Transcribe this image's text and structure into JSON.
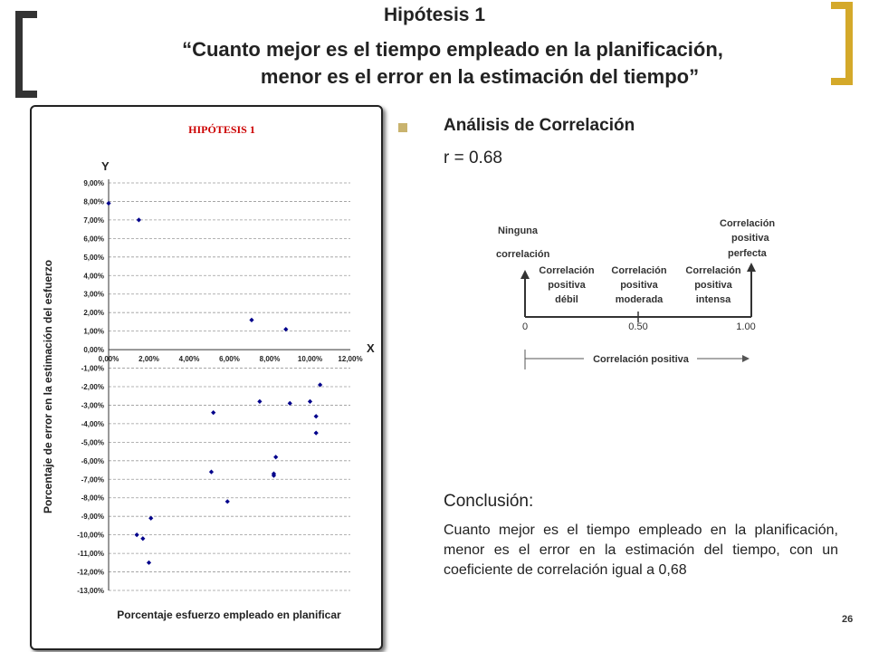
{
  "slide": {
    "title": "Hipótesis 1",
    "subtitle_line1": "“Cuanto mejor es el tiempo empleado en la planificación,",
    "subtitle_line2": "menor es el error en la estimación del tiempo”",
    "page_number": "26",
    "bracket_colors": {
      "left": "#333333",
      "right": "#d4a92a"
    }
  },
  "analysis": {
    "heading": "Análisis de Correlación",
    "r_value": "r = 0.68"
  },
  "correlation_scale": {
    "top_left": [
      "Ninguna",
      "correlación"
    ],
    "top_right": [
      "Correlación",
      "positiva",
      "perfecta"
    ],
    "label_weak": [
      "Correlación",
      "positiva",
      "débil"
    ],
    "label_moderate": [
      "Correlación",
      "positiva",
      "moderada"
    ],
    "label_strong": [
      "Correlación",
      "positiva",
      "intensa"
    ],
    "tick_0": "0",
    "tick_050": "0.50",
    "tick_100": "1.00",
    "bottom_label": "Correlación positiva"
  },
  "conclusion": {
    "label": "Conclusión:",
    "text": "Cuanto mejor es el tiempo empleado en la planificación, menor es el error en la estimación del tiempo, con un coeficiente de correlación igual a 0,68"
  },
  "chart_data": {
    "type": "scatter",
    "title": "HIPÓTESIS 1",
    "title_color": "#cc0000",
    "xlabel": "Porcentaje esfuerzo empleado en planificar",
    "ylabel": "Porcentaje de error en la estimación del esfuerzo",
    "x_axis_name": "X",
    "y_axis_name": "Y",
    "xlim": [
      0,
      12
    ],
    "ylim": [
      -13,
      9
    ],
    "x_ticks": [
      "0,00%",
      "2,00%",
      "4,00%",
      "6,00%",
      "8,00%",
      "10,00%",
      "12,00%"
    ],
    "y_ticks": [
      "9,00%",
      "8,00%",
      "7,00%",
      "6,00%",
      "5,00%",
      "4,00%",
      "3,00%",
      "2,00%",
      "1,00%",
      "0,00%",
      "-1,00%",
      "-2,00%",
      "-3,00%",
      "-4,00%",
      "-5,00%",
      "-6,00%",
      "-7,00%",
      "-8,00%",
      "-9,00%",
      "-10,00%",
      "-11,00%",
      "-12,00%",
      "-13,00%"
    ],
    "grid": true,
    "point_color": "#00008b",
    "points": [
      {
        "x": 0.0,
        "y": 7.9
      },
      {
        "x": 1.5,
        "y": 7.0
      },
      {
        "x": 1.4,
        "y": -10.0
      },
      {
        "x": 1.7,
        "y": -10.2
      },
      {
        "x": 2.1,
        "y": -9.1
      },
      {
        "x": 2.0,
        "y": -11.5
      },
      {
        "x": 5.2,
        "y": -3.4
      },
      {
        "x": 5.1,
        "y": -6.6
      },
      {
        "x": 5.9,
        "y": -8.2
      },
      {
        "x": 7.1,
        "y": 1.6
      },
      {
        "x": 7.5,
        "y": -2.8
      },
      {
        "x": 8.2,
        "y": -6.7
      },
      {
        "x": 8.3,
        "y": -5.8
      },
      {
        "x": 8.2,
        "y": -6.8
      },
      {
        "x": 8.8,
        "y": 1.1
      },
      {
        "x": 9.0,
        "y": -2.9
      },
      {
        "x": 10.0,
        "y": -2.8
      },
      {
        "x": 10.3,
        "y": -3.6
      },
      {
        "x": 10.5,
        "y": -1.9
      },
      {
        "x": 10.3,
        "y": -4.5
      }
    ]
  }
}
